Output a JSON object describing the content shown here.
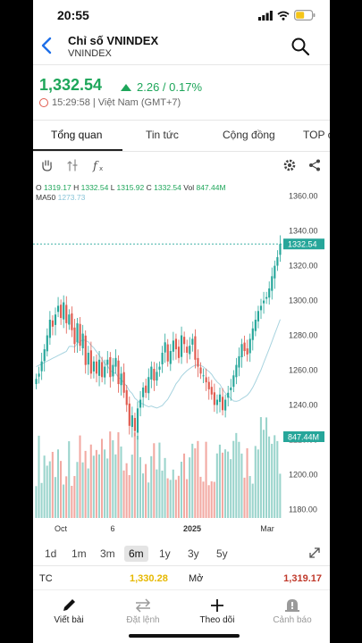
{
  "status_bar": {
    "time": "20:55"
  },
  "header": {
    "title": "Chỉ số VNINDEX",
    "subtitle": "VNINDEX"
  },
  "quote": {
    "price": "1,332.54",
    "change": "2.26 / 0.17%",
    "timestamp": "15:29:58 | Việt Nam (GMT+7)"
  },
  "tabs": [
    "Tổng quan",
    "Tin tức",
    "Cộng đồng",
    "TOP c"
  ],
  "ohlc": {
    "o_label": "O",
    "o": "1319.17",
    "h_label": "H",
    "h": "1332.54",
    "l_label": "L",
    "l": "1315.92",
    "c_label": "C",
    "c": "1332.54",
    "vol_label": "Vol",
    "vol": "847.44M",
    "ma_label": "MA50",
    "ma": "1273.73"
  },
  "chart_data": {
    "type": "candlestick",
    "y_ticks": [
      "1360.00",
      "1340.00",
      "1320.00",
      "1300.00",
      "1280.00",
      "1260.00",
      "1240.00",
      "1220.00",
      "1200.00",
      "1180.00"
    ],
    "x_ticks": [
      "Oct",
      "6",
      "2025",
      "Mar"
    ],
    "last_price_label": "1332.54",
    "volume_label": "847.44M",
    "ylim": [
      1175,
      1365
    ],
    "closes": [
      1255,
      1258,
      1265,
      1272,
      1280,
      1289,
      1285,
      1292,
      1297,
      1290,
      1299,
      1287,
      1292,
      1283,
      1275,
      1287,
      1274,
      1281,
      1263,
      1270,
      1258,
      1265,
      1258,
      1266,
      1256,
      1262,
      1266,
      1256,
      1263,
      1267,
      1252,
      1258,
      1247,
      1240,
      1228,
      1234,
      1225,
      1238,
      1243,
      1250,
      1247,
      1256,
      1262,
      1254,
      1259,
      1262,
      1270,
      1276,
      1265,
      1271,
      1277,
      1272,
      1267,
      1280,
      1275,
      1270,
      1274,
      1278,
      1266,
      1262,
      1258,
      1257,
      1253,
      1249,
      1246,
      1240,
      1243,
      1246,
      1237,
      1243,
      1247,
      1250,
      1257,
      1263,
      1268,
      1275,
      1271,
      1269,
      1278,
      1284,
      1289,
      1294,
      1297,
      1300,
      1302,
      1307,
      1314,
      1320,
      1325,
      1332.54
    ],
    "volume_scale": {
      "label": "847.44M"
    },
    "ma_series_name": "MA50"
  },
  "ranges": [
    "1d",
    "1m",
    "3m",
    "6m",
    "1y",
    "3y",
    "5y"
  ],
  "active_range": "6m",
  "stats": {
    "tc_label": "TC",
    "tc_value": "1,330.28",
    "open_label": "Mở",
    "open_value": "1,319.17"
  },
  "bottom_nav": [
    "Viết bài",
    "Đặt lệnh",
    "Theo dõi",
    "Cảnh báo"
  ],
  "colors": {
    "up": "#1ea65a",
    "down": "#e05a4e",
    "teal": "#26a69a",
    "ma": "#a7d3df",
    "accent": "#1e6fe8"
  }
}
